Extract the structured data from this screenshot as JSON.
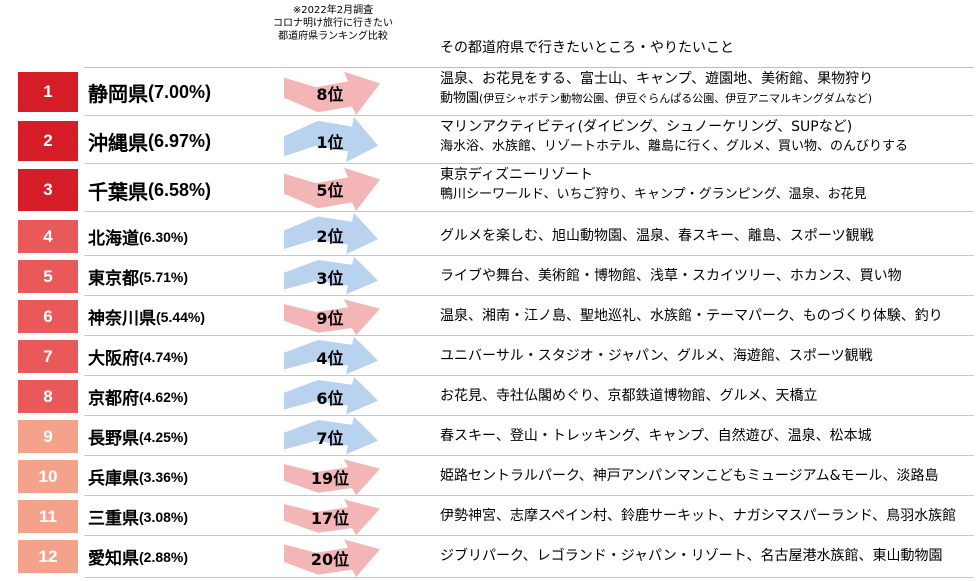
{
  "header": {
    "note_lines": [
      "※2022年2月調査",
      "コロナ明け旅行に行きたい",
      "都道府県ランキング比較"
    ],
    "col_activities": "その都道府県で行きたいところ・やりたいこと"
  },
  "colors": {
    "tier1": "#d51d27",
    "tier2": "#e9595a",
    "tier3": "#f4a38a",
    "arrow_up": "#f3b5b5",
    "arrow_down": "#b9d2ee"
  },
  "rows": [
    {
      "rank": "1",
      "name": "静岡県",
      "pct": "(7.00%)",
      "prev_rank": "8位",
      "trend": "up",
      "acts": [
        "温泉、お花見をする、富士山、キャンプ、遊園地、美術館、果物狩り",
        "動物園",
        "(伊豆シャボテン動物公園、伊豆ぐらんぱる公園、伊豆アニマルキングダムなど)"
      ]
    },
    {
      "rank": "2",
      "name": "沖縄県",
      "pct": "(6.97%)",
      "prev_rank": "1位",
      "trend": "down",
      "acts": [
        "マリンアクティビティ(ダイビング、シュノーケリング、SUPなど)",
        "海水浴、水族館、リゾートホテル、離島に行く、グルメ、買い物、のんびりする"
      ]
    },
    {
      "rank": "3",
      "name": "千葉県",
      "pct": "(6.58%)",
      "prev_rank": "5位",
      "trend": "up",
      "acts": [
        "東京ディズニーリゾート",
        "鴨川シーワールド、いちご狩り、キャンプ・グランピング、温泉、お花見"
      ]
    },
    {
      "rank": "4",
      "name": "北海道",
      "pct": "(6.30%)",
      "prev_rank": "2位",
      "trend": "down",
      "acts": [
        "グルメを楽しむ、旭山動物園、温泉、春スキー、離島、スポーツ観戦"
      ]
    },
    {
      "rank": "5",
      "name": "東京都",
      "pct": "(5.71%)",
      "prev_rank": "3位",
      "trend": "down",
      "acts": [
        "ライブや舞台、美術館・博物館、浅草・スカイツリー、ホカンス、買い物"
      ]
    },
    {
      "rank": "6",
      "name": "神奈川県",
      "pct": "(5.44%)",
      "prev_rank": "9位",
      "trend": "up",
      "acts": [
        "温泉、湘南・江ノ島、聖地巡礼、水族館・テーマパーク、ものづくり体験、釣り"
      ]
    },
    {
      "rank": "7",
      "name": "大阪府",
      "pct": "(4.74%)",
      "prev_rank": "4位",
      "trend": "down",
      "acts": [
        "ユニバーサル・スタジオ・ジャパン、グルメ、海遊館、スポーツ観戦"
      ]
    },
    {
      "rank": "8",
      "name": "京都府",
      "pct": "(4.62%)",
      "prev_rank": "6位",
      "trend": "down",
      "acts": [
        "お花見、寺社仏閣めぐり、京都鉄道博物館、グルメ、天橋立"
      ]
    },
    {
      "rank": "9",
      "name": "長野県",
      "pct": "(4.25%)",
      "prev_rank": "7位",
      "trend": "down",
      "acts": [
        "春スキー、登山・トレッキング、キャンプ、自然遊び、温泉、松本城"
      ]
    },
    {
      "rank": "10",
      "name": "兵庫県",
      "pct": "(3.36%)",
      "prev_rank": "19位",
      "trend": "up",
      "acts": [
        "姫路セントラルパーク、神戸アンパンマンこどもミュージアム&モール、淡路島"
      ]
    },
    {
      "rank": "11",
      "name": "三重県",
      "pct": "(3.08%)",
      "prev_rank": "17位",
      "trend": "up",
      "acts": [
        "伊勢神宮、志摩スペイン村、鈴鹿サーキット、ナガシマスパーランド、鳥羽水族館"
      ]
    },
    {
      "rank": "12",
      "name": "愛知県",
      "pct": "(2.88%)",
      "prev_rank": "20位",
      "trend": "up",
      "acts": [
        "ジブリパーク、レゴランド・ジャパン・リゾート、名古屋港水族館、東山動物園"
      ]
    }
  ]
}
